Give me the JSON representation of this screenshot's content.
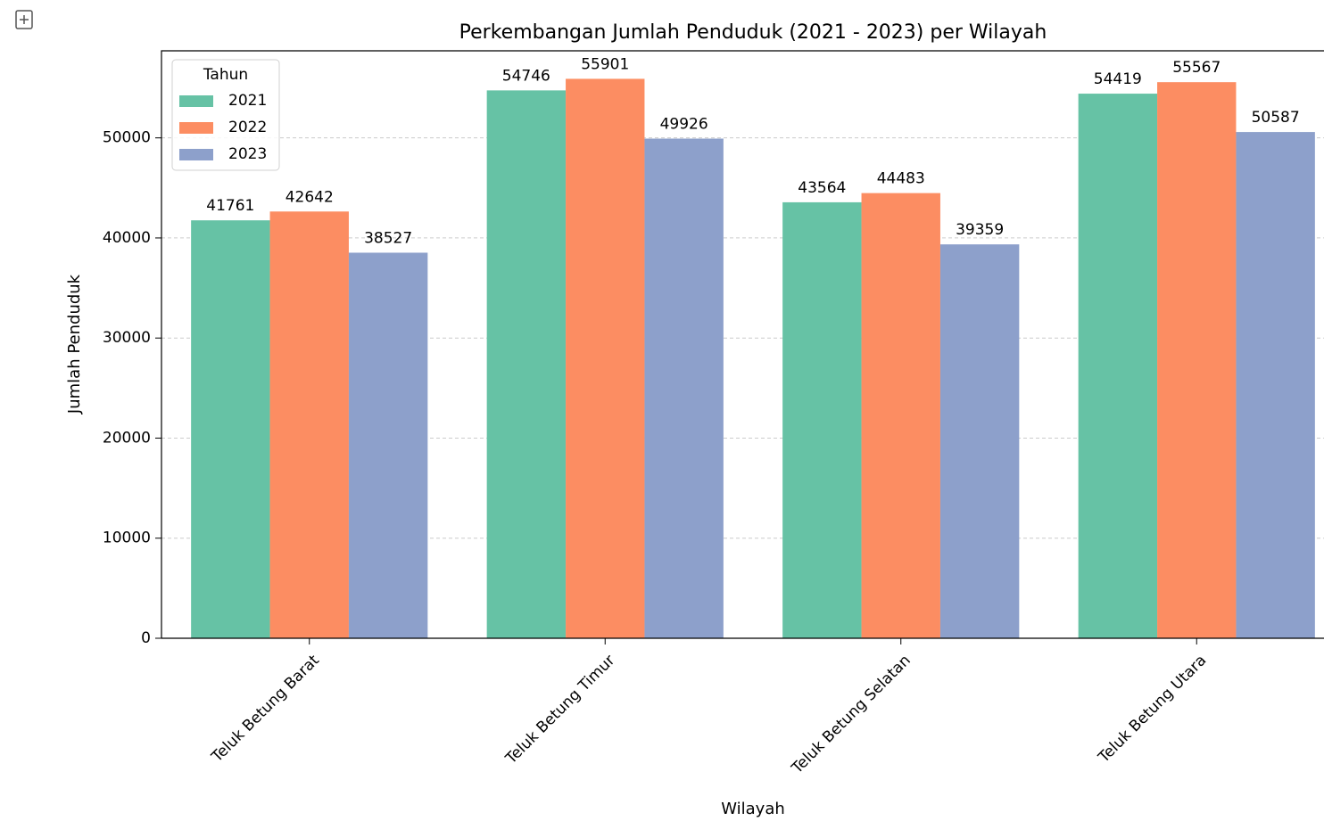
{
  "chart_data": {
    "type": "bar",
    "title": "Perkembangan Jumlah Penduduk (2021 - 2023) per Wilayah",
    "x_label": "Wilayah",
    "y_label": "Jumlah Penduduk",
    "legend_title": "Tahun",
    "legend_position": "upper left",
    "grid": true,
    "categories": [
      "Teluk Betung Barat",
      "Teluk Betung Timur",
      "Teluk Betung Selatan",
      "Teluk Betung Utara"
    ],
    "series": [
      {
        "name": "2021",
        "color": "#66c2a5",
        "values": [
          41761,
          54746,
          43564,
          54419
        ]
      },
      {
        "name": "2022",
        "color": "#fc8d62",
        "values": [
          42642,
          55901,
          44483,
          55567
        ]
      },
      {
        "name": "2023",
        "color": "#8da0cb",
        "values": [
          38527,
          49926,
          39359,
          50587
        ]
      }
    ],
    "ylim": [
      0,
      58700
    ],
    "yticks": [
      0,
      10000,
      20000,
      30000,
      40000,
      50000
    ]
  }
}
